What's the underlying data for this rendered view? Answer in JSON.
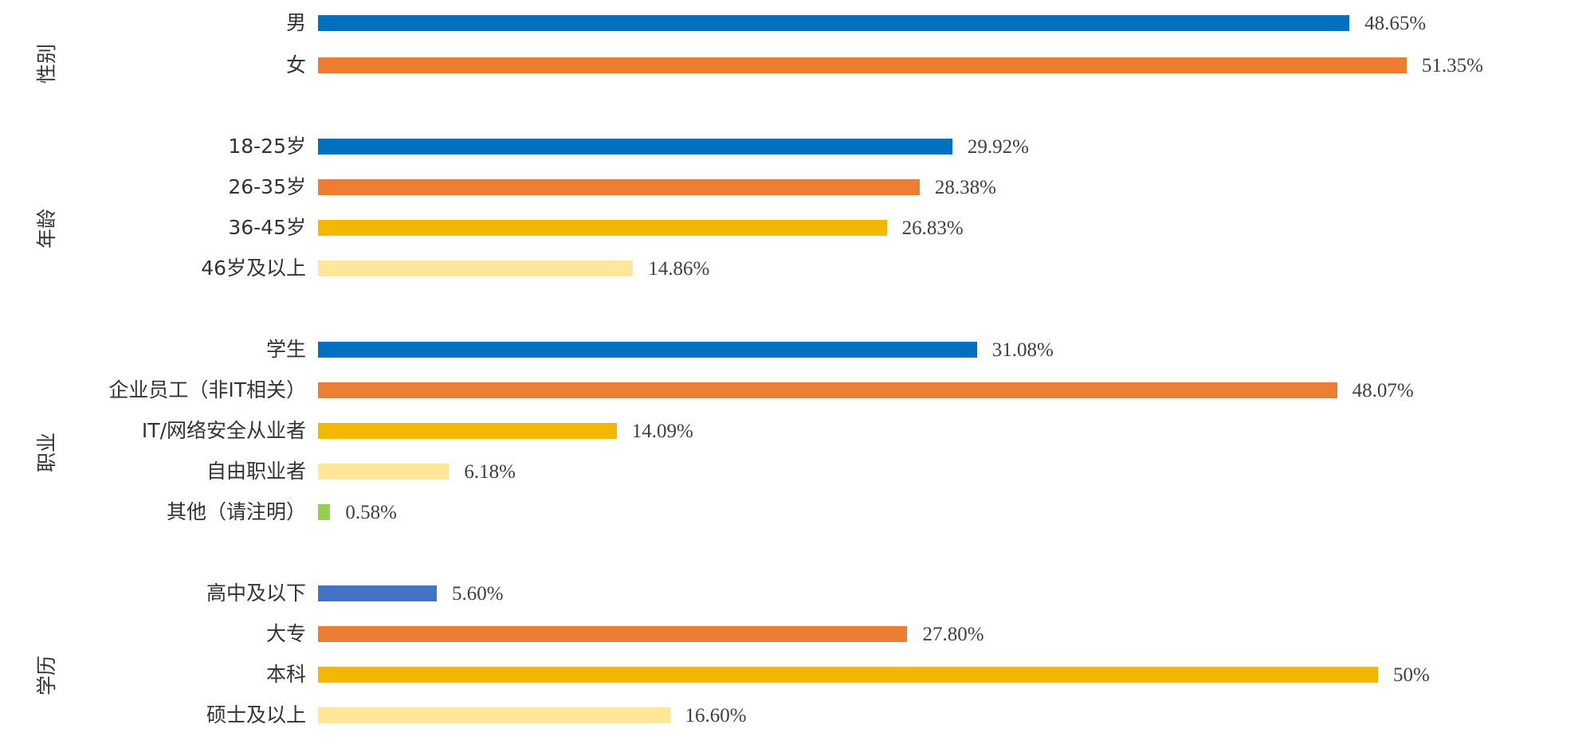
{
  "chart_data": {
    "type": "bar",
    "orientation": "horizontal",
    "unit": "%",
    "xlim": [
      0,
      55
    ],
    "grid": false,
    "legend": "none",
    "groups": [
      {
        "name": "性别",
        "categories": [
          "男",
          "女"
        ],
        "values": [
          48.65,
          51.35
        ],
        "labels": [
          "48.65%",
          "51.35%"
        ],
        "colors": [
          "#0070C0",
          "#ED7D31"
        ]
      },
      {
        "name": "年龄",
        "categories": [
          "18-25岁",
          "26-35岁",
          "36-45岁",
          "46岁及以上"
        ],
        "values": [
          29.92,
          28.38,
          26.83,
          14.86
        ],
        "labels": [
          "29.92%",
          "28.38%",
          "26.83%",
          "14.86%"
        ],
        "colors": [
          "#0070C0",
          "#ED7D31",
          "#F2B800",
          "#FFE699"
        ]
      },
      {
        "name": "职业",
        "categories": [
          "学生",
          "企业员工（非IT相关）",
          "IT/网络安全从业者",
          "自由职业者",
          "其他（请注明）"
        ],
        "values": [
          31.08,
          48.07,
          14.09,
          6.18,
          0.58
        ],
        "labels": [
          "31.08%",
          "48.07%",
          "14.09%",
          "6.18%",
          "0.58%"
        ],
        "colors": [
          "#0070C0",
          "#ED7D31",
          "#F2B800",
          "#FFE699",
          "#92D050"
        ]
      },
      {
        "name": "学历",
        "categories": [
          "高中及以下",
          "大专",
          "本科",
          "硕士及以上"
        ],
        "values": [
          5.6,
          27.8,
          50,
          16.6
        ],
        "labels": [
          "5.60%",
          "27.80%",
          "50%",
          "16.60%"
        ],
        "colors": [
          "#4472C4",
          "#ED7D31",
          "#F2B800",
          "#FFE699"
        ]
      }
    ]
  }
}
